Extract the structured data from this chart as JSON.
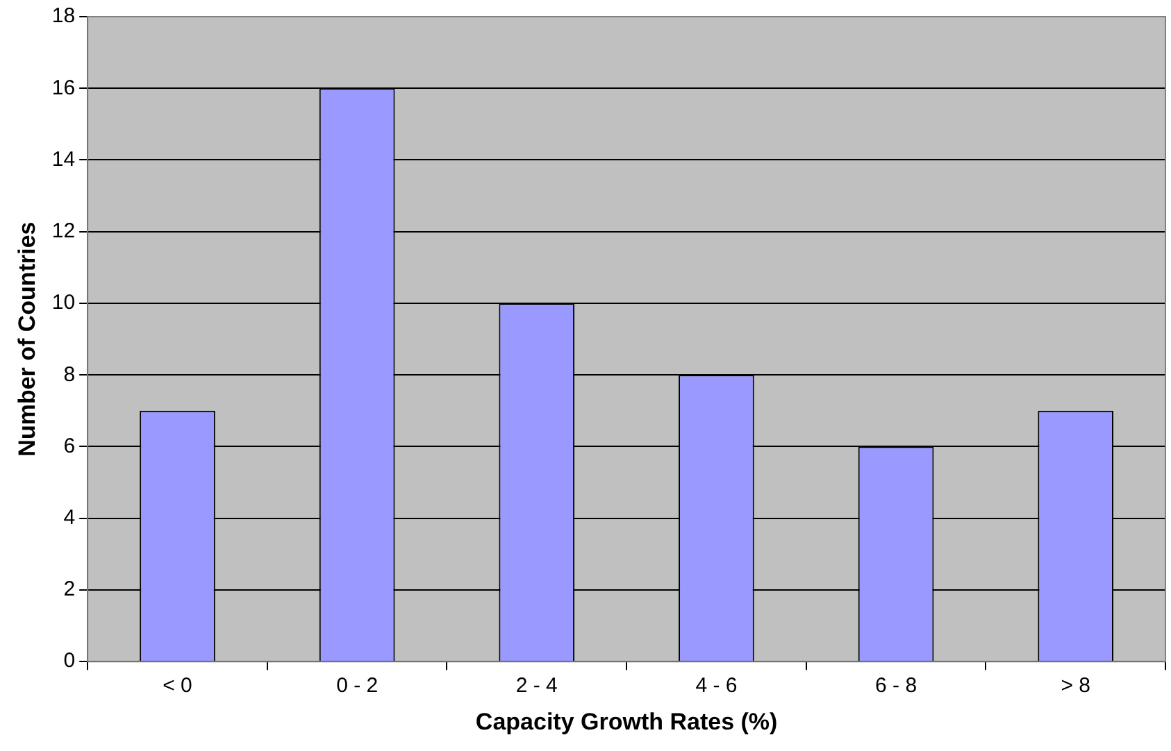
{
  "chart_data": {
    "type": "bar",
    "xlabel": "Capacity Growth Rates (%)",
    "ylabel": "Number of Countries",
    "categories": [
      "< 0",
      "0 - 2",
      "2 - 4",
      "4 - 6",
      "6 - 8",
      "> 8"
    ],
    "values": [
      7,
      16,
      10,
      8,
      6,
      7
    ],
    "color": "#9999ff",
    "ylim": [
      0,
      18
    ],
    "yticks": [
      0,
      2,
      4,
      6,
      8,
      10,
      12,
      14,
      16,
      18
    ],
    "grid": "y"
  }
}
